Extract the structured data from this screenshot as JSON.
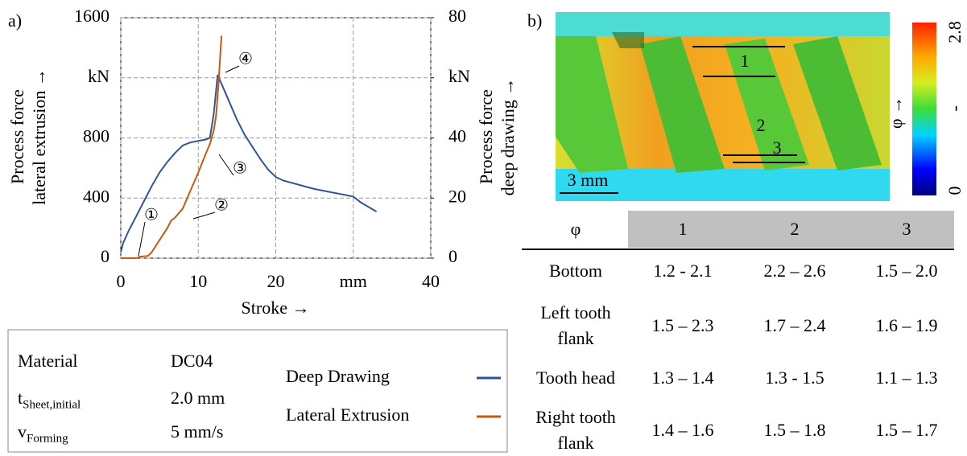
{
  "chart_data": {
    "type": "line",
    "panel_label": "a)",
    "ylabel": [
      "Process force",
      "lateral extrusion →"
    ],
    "y2label": [
      "Process force",
      "deep drawing →"
    ],
    "xlabel": "Stroke →",
    "xlim": [
      0,
      40
    ],
    "xticks": [
      0,
      10,
      20,
      {
        "value": 30,
        "label": "mm"
      },
      40
    ],
    "ylim": [
      0,
      1600
    ],
    "yticks": [
      0,
      400,
      800,
      {
        "value": 1200,
        "label": "kN"
      },
      1600
    ],
    "y2lim": [
      0,
      80
    ],
    "y2ticks": [
      0,
      20,
      40,
      {
        "value": 60,
        "label": "kN"
      },
      80
    ],
    "grid": true,
    "series": [
      {
        "name": "Deep Drawing",
        "color": "#2f5597",
        "axis": "y2",
        "x": [
          0,
          0.3,
          1,
          2,
          3,
          4,
          5,
          6,
          7,
          8,
          9,
          10,
          11,
          11.5,
          12,
          12.5,
          13,
          14,
          15,
          16,
          17,
          18,
          19,
          20,
          21,
          25,
          30,
          31,
          32,
          33
        ],
        "values": [
          2,
          5,
          9,
          14,
          19,
          24,
          28.5,
          32,
          35,
          37.5,
          38.5,
          39,
          39.5,
          40,
          48,
          61,
          58,
          52,
          46,
          41,
          37,
          33,
          29.5,
          27,
          25.8,
          23,
          20.5,
          18.5,
          17,
          15.5
        ]
      },
      {
        "name": "Lateral Extrusion",
        "color": "#c55a11",
        "x": [
          0,
          2,
          2.5,
          3.5,
          4,
          5,
          6,
          6.5,
          7,
          8,
          9,
          10,
          11,
          11.5,
          12,
          12.3,
          12.6,
          12.8,
          13
        ],
        "values": [
          0,
          0,
          10,
          15,
          40,
          120,
          200,
          250,
          270,
          330,
          450,
          570,
          700,
          760,
          850,
          950,
          1150,
          1320,
          1480
        ]
      }
    ],
    "annotations": [
      "①",
      "②",
      "③",
      "④"
    ]
  },
  "legend_box": {
    "rows": [
      {
        "symbol": "Material",
        "value": "DC04"
      },
      {
        "symbol": "t",
        "subscript": "Sheet,initial",
        "value": "2.0 mm"
      },
      {
        "symbol": "v",
        "subscript": "Forming",
        "value": "5 mm/s"
      }
    ]
  },
  "panel_b": {
    "panel_label": "b)",
    "regions": [
      "1",
      "2",
      "3"
    ],
    "scale_bar": "3 mm",
    "colorbar": {
      "label": "φ →",
      "ticks": [
        "0",
        "-",
        "2.8"
      ]
    }
  },
  "table": {
    "header": [
      "φ",
      "1",
      "2",
      "3"
    ],
    "rows": [
      [
        "Bottom",
        "1.2 - 2.1",
        "2.2 – 2.6",
        "1.5 – 2.0"
      ],
      [
        "Left tooth flank",
        "1.5 – 2.3",
        "1.7 – 2.4",
        "1.6 – 1.9"
      ],
      [
        "Tooth head",
        "1.3 – 1.4",
        "1.3 - 1.5",
        "1.1 – 1.3"
      ],
      [
        "Right tooth flank",
        "1.4 – 1.6",
        "1.5 – 1.8",
        "1.5 – 1.7"
      ]
    ]
  }
}
